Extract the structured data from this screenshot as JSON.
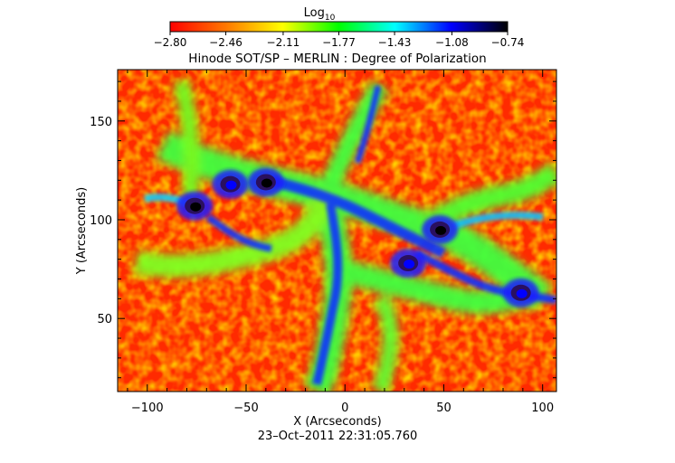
{
  "chart_data": {
    "type": "heatmap",
    "title": "Hinode SOT/SP – MERLIN : Degree of Polarization",
    "xlabel": "X (Arcseconds)",
    "ylabel": "Y (Arcseconds)",
    "footer": "23–Oct–2011 22:31:05.760",
    "colorbar": {
      "label_base": "Log",
      "label_sub": "10",
      "min": -2.8,
      "max": -0.74,
      "ticks": [
        "−2.80",
        "−2.46",
        "−2.11",
        "−1.77",
        "−1.43",
        "−1.08",
        "−0.74"
      ],
      "tick_values": [
        -2.8,
        -2.46,
        -2.11,
        -1.77,
        -1.43,
        -1.08,
        -0.74
      ],
      "colormap": [
        "#ff0000",
        "#ff7800",
        "#ffff00",
        "#00ff00",
        "#00ffff",
        "#0000ff",
        "#000000"
      ]
    },
    "xlim": [
      -115,
      107
    ],
    "ylim": [
      13,
      176
    ],
    "x_ticks": [
      -100,
      -50,
      0,
      50,
      100
    ],
    "x_tick_labels": [
      "−100",
      "−50",
      "0",
      "50",
      "100"
    ],
    "y_ticks": [
      50,
      100,
      150
    ],
    "y_tick_labels": [
      "50",
      "100",
      "150"
    ],
    "dark_spots": [
      {
        "x": -76,
        "y": 107,
        "value": -0.8
      },
      {
        "x": -40,
        "y": 119,
        "value": -0.9
      },
      {
        "x": 48,
        "y": 95,
        "value": -0.85
      },
      {
        "x": 89,
        "y": 63,
        "value": -0.95
      },
      {
        "x": -58,
        "y": 118,
        "value": -1.1
      },
      {
        "x": 32,
        "y": 78,
        "value": -1.15
      }
    ]
  }
}
